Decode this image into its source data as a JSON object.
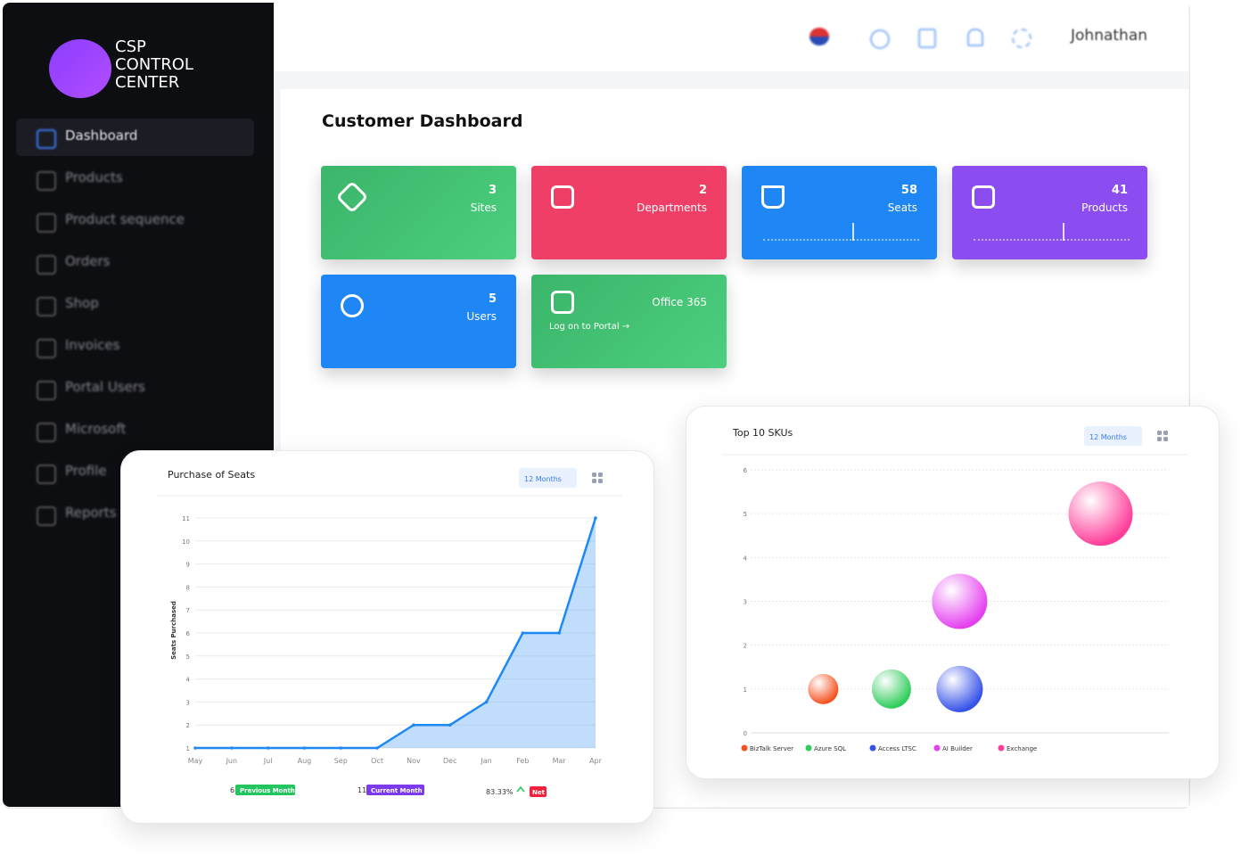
{
  "logo": {
    "line1": "CSP",
    "line2": "CONTROL",
    "line3": "CENTER"
  },
  "sidebar": {
    "items": [
      "Dashboard",
      "Products",
      "Product sequence",
      "Orders",
      "Shop",
      "Invoices",
      "Portal Users",
      "Microsoft",
      "Profile",
      "Reports"
    ]
  },
  "header": {
    "user": "Johnathan"
  },
  "page_title": "Customer Dashboard",
  "cards": [
    {
      "value": 3,
      "label": "Sites"
    },
    {
      "value": 2,
      "label": "Departments"
    },
    {
      "value": 58,
      "label": "Seats"
    },
    {
      "value": 41,
      "label": "Products"
    },
    {
      "value": 5,
      "label": "Users"
    },
    {
      "label": "Office 365",
      "link": "Log on to Portal →"
    }
  ],
  "chart_data": [
    {
      "type": "line",
      "title": "Purchase of Seats",
      "filter": "12 Months",
      "y_label": "Seats Purchased",
      "categories": [
        "May",
        "Jun",
        "Jul",
        "Aug",
        "Sep",
        "Oct",
        "Nov",
        "Dec",
        "Jan",
        "Feb",
        "Mar",
        "Apr"
      ],
      "values": [
        1,
        1,
        1,
        1,
        1,
        1,
        2,
        2,
        3,
        6,
        6,
        11
      ],
      "color": "#1e88f5",
      "ylim": [
        1,
        11
      ],
      "yticks": [
        1,
        2,
        3,
        4,
        5,
        6,
        7,
        8,
        9,
        10,
        11
      ],
      "grid": true,
      "footer": {
        "previous_value": 6,
        "previous_label": "Previous Month",
        "current_value": 11,
        "current_label": "Current Month",
        "net_value": "83.33%",
        "net_label": "Net"
      }
    },
    {
      "type": "bubble",
      "title": "Top 10 SKUs",
      "filter": "12 Months",
      "xlim": [
        0,
        10
      ],
      "ylim": [
        0,
        6
      ],
      "yticks": [
        0,
        1,
        2,
        3,
        4,
        5,
        6
      ],
      "grid": true,
      "series": [
        {
          "name": "BizTalk Server",
          "color": "#f4511e",
          "x": [
            2.4
          ],
          "values": [
            1
          ],
          "sizes": [
            17
          ]
        },
        {
          "name": "Azure SQL",
          "color": "#2ecc5a",
          "x": [
            3.9
          ],
          "values": [
            1
          ],
          "sizes": [
            22
          ]
        },
        {
          "name": "Access LTSC",
          "color": "#3451e8",
          "x": [
            5.4
          ],
          "values": [
            1
          ],
          "sizes": [
            26
          ]
        },
        {
          "name": "AI Builder",
          "color": "#e53ff0",
          "x": [
            5.4
          ],
          "values": [
            3
          ],
          "sizes": [
            31
          ]
        },
        {
          "name": "Exchange",
          "color": "#ff3d9a",
          "x": [
            8.5
          ],
          "values": [
            5
          ],
          "sizes": [
            36
          ]
        }
      ]
    }
  ]
}
